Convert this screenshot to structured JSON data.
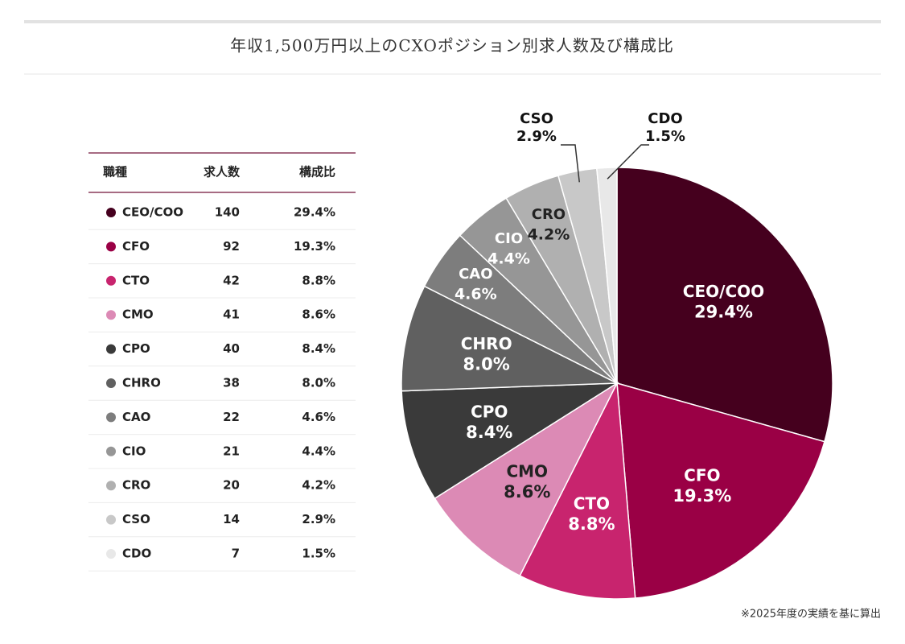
{
  "chart_data": {
    "type": "pie",
    "title": "年収1,500万円以上のCXOポジション別求人数及び構成比",
    "categories": [
      "CEO/COO",
      "CFO",
      "CTO",
      "CMO",
      "CPO",
      "CHRO",
      "CAO",
      "CIO",
      "CRO",
      "CSO",
      "CDO"
    ],
    "values": [
      29.4,
      19.3,
      8.8,
      8.6,
      8.4,
      8.0,
      4.6,
      4.4,
      4.2,
      2.9,
      1.5
    ],
    "value_labels": [
      "29.4%",
      "19.3%",
      "8.8%",
      "8.6%",
      "8.4%",
      "8.0%",
      "4.6%",
      "4.4%",
      "4.2%",
      "2.9%",
      "1.5%"
    ],
    "colors": [
      "#45001e",
      "#9a0045",
      "#c8246e",
      "#dc8ab5",
      "#3a3a3a",
      "#606060",
      "#7d7d7d",
      "#969696",
      "#b0b0b0",
      "#c8c8c8",
      "#e8e8e8"
    ],
    "table": {
      "headers": [
        "職種",
        "求人数",
        "構成比"
      ],
      "counts": [
        140,
        92,
        42,
        41,
        40,
        38,
        22,
        21,
        20,
        14,
        7
      ]
    },
    "note": "※2025年度の実績を基に算出"
  }
}
